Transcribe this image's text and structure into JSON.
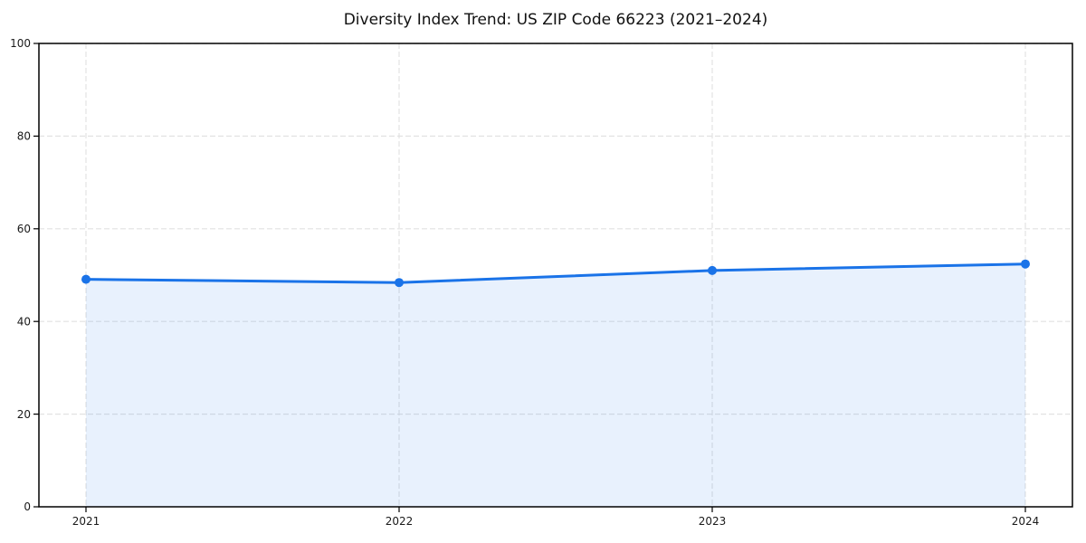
{
  "chart_data": {
    "type": "line",
    "title": "Diversity Index Trend: US ZIP Code 66223 (2021–2024)",
    "categories": [
      "2021",
      "2022",
      "2023",
      "2024"
    ],
    "series": [
      {
        "name": "Diversity Index",
        "values": [
          49.1,
          48.4,
          51.0,
          52.4
        ],
        "color": "#1a73e8",
        "marker": "circle",
        "marker_size": 5,
        "line_width": 3,
        "area_fill": true,
        "area_opacity": 0.1
      }
    ],
    "xlabel": "",
    "ylabel": "",
    "ylim": [
      0,
      100
    ],
    "yticks": [
      0,
      20,
      40,
      60,
      80,
      100
    ],
    "grid": true,
    "grid_style": "dashed",
    "legend_position": "none",
    "colors": {
      "grid": "#e2e2e2",
      "axis_frame": "#000000",
      "tick_text": "#1a1a1a",
      "background": "#ffffff",
      "title_text": "#111111"
    }
  }
}
